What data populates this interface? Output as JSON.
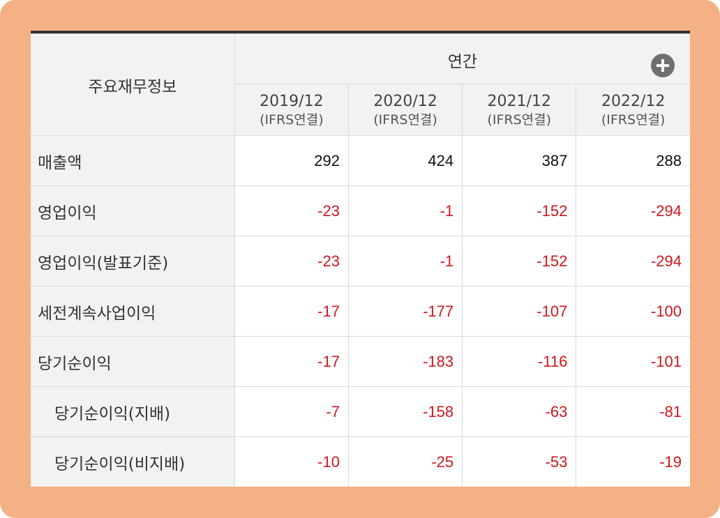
{
  "header": {
    "row_label": "주요재무정보",
    "period_group": "연간",
    "expand_icon": "plus-circle-icon",
    "years": [
      {
        "year": "2019/12",
        "basis": "(IFRS연결)"
      },
      {
        "year": "2020/12",
        "basis": "(IFRS연결)"
      },
      {
        "year": "2021/12",
        "basis": "(IFRS연결)"
      },
      {
        "year": "2022/12",
        "basis": "(IFRS연결)"
      }
    ]
  },
  "rows": [
    {
      "label": "매출액",
      "values": [
        "292",
        "424",
        "387",
        "288"
      ]
    },
    {
      "label": "영업이익",
      "values": [
        "-23",
        "-1",
        "-152",
        "-294"
      ]
    },
    {
      "label": "영업이익(발표기준)",
      "values": [
        "-23",
        "-1",
        "-152",
        "-294"
      ]
    },
    {
      "label": "세전계속사업이익",
      "values": [
        "-17",
        "-177",
        "-107",
        "-100"
      ]
    },
    {
      "label": "당기순이익",
      "values": [
        "-17",
        "-183",
        "-116",
        "-101"
      ]
    },
    {
      "label": "당기순이익(지배)",
      "values": [
        "-7",
        "-158",
        "-63",
        "-81"
      ]
    },
    {
      "label": "당기순이익(비지배)",
      "values": [
        "-10",
        "-25",
        "-53",
        "-19"
      ]
    }
  ],
  "colors": {
    "frame": "#f4b183",
    "header_bg": "#f2f2f2",
    "negative": "#d0171b",
    "positive": "#111111"
  }
}
